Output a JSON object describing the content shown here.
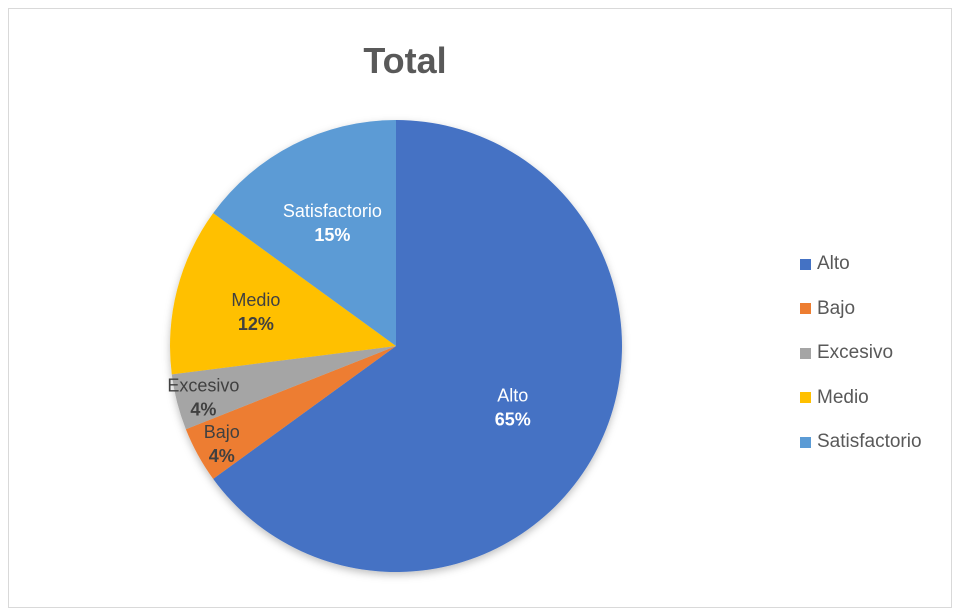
{
  "chart_data": {
    "type": "pie",
    "title": "Total",
    "categories": [
      "Alto",
      "Bajo",
      "Excesivo",
      "Medio",
      "Satisfactorio"
    ],
    "values": [
      65,
      4,
      4,
      12,
      15
    ],
    "value_labels": [
      "65%",
      "4%",
      "4%",
      "12%",
      "15%"
    ],
    "colors": [
      "#4472c4",
      "#ed7d31",
      "#a5a5a5",
      "#ffc000",
      "#5b9bd5"
    ],
    "label_colors": [
      "#ffffff",
      "#404040",
      "#404040",
      "#404040",
      "#ffffff"
    ],
    "legend": "right",
    "start_angle_deg": 0,
    "direction": "clockwise"
  }
}
